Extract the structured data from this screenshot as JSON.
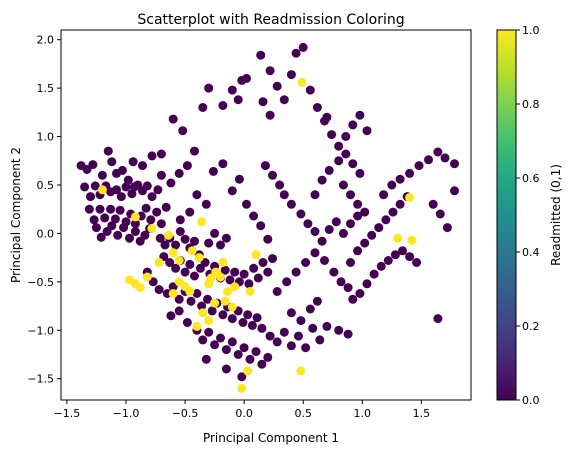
{
  "chart_data": {
    "type": "scatter",
    "title": "Scatterplot with Readmission Coloring",
    "xlabel": "Principal Component 1",
    "ylabel": "Principal Component 2",
    "xlim": [
      -1.55,
      1.92
    ],
    "ylim": [
      -1.72,
      2.1
    ],
    "xticks": [
      -1.5,
      -1.0,
      -0.5,
      0.0,
      0.5,
      1.0,
      1.5
    ],
    "xtick_labels": [
      "−1.5",
      "−1.0",
      "−0.5",
      "0.0",
      "0.5",
      "1.0",
      "1.5"
    ],
    "yticks": [
      -1.5,
      -1.0,
      -0.5,
      0.0,
      0.5,
      1.0,
      1.5,
      2.0
    ],
    "ytick_labels": [
      "−1.5",
      "−1.0",
      "−0.5",
      "0.0",
      "0.5",
      "1.0",
      "1.5",
      "2.0"
    ],
    "colorbar": {
      "label": "Readmitted (0,1)",
      "ticks": [
        0.0,
        0.2,
        0.4,
        0.6,
        0.8,
        1.0
      ],
      "tick_labels": [
        "0.0",
        "0.2",
        "0.4",
        "0.6",
        "0.8",
        "1.0"
      ],
      "colormap": "viridis"
    },
    "colors": {
      "readmitted_0": "#440154",
      "readmitted_1": "#fde725"
    },
    "series": [
      {
        "readmitted": 0,
        "points": [
          [
            -1.38,
            0.7
          ],
          [
            -1.33,
            0.66
          ],
          [
            -1.28,
            0.71
          ],
          [
            -1.2,
            0.6
          ],
          [
            -1.15,
            0.85
          ],
          [
            -1.12,
            0.74
          ],
          [
            -1.08,
            0.62
          ],
          [
            -1.03,
            0.65
          ],
          [
            -0.98,
            0.55
          ],
          [
            -0.93,
            0.48
          ],
          [
            -1.35,
            0.48
          ],
          [
            -1.3,
            0.38
          ],
          [
            -1.26,
            0.49
          ],
          [
            -1.22,
            0.4
          ],
          [
            -1.17,
            0.49
          ],
          [
            -1.13,
            0.43
          ],
          [
            -1.08,
            0.45
          ],
          [
            -1.04,
            0.38
          ],
          [
            -1.0,
            0.48
          ],
          [
            -0.95,
            0.41
          ],
          [
            -0.9,
            0.5
          ],
          [
            -0.86,
            0.44
          ],
          [
            -0.82,
            0.49
          ],
          [
            -0.78,
            0.38
          ],
          [
            -0.73,
            0.45
          ],
          [
            -1.31,
            0.25
          ],
          [
            -1.27,
            0.14
          ],
          [
            -1.22,
            0.25
          ],
          [
            -1.18,
            0.16
          ],
          [
            -1.13,
            0.25
          ],
          [
            -1.09,
            0.15
          ],
          [
            -1.05,
            0.24
          ],
          [
            -1.0,
            0.12
          ],
          [
            -0.96,
            0.2
          ],
          [
            -0.92,
            0.1
          ],
          [
            -0.87,
            0.18
          ],
          [
            -0.83,
            0.26
          ],
          [
            -0.79,
            0.14
          ],
          [
            -0.74,
            0.22
          ],
          [
            -0.7,
            0.1
          ],
          [
            -0.66,
            0.27
          ],
          [
            -1.25,
            0.06
          ],
          [
            -1.21,
            -0.04
          ],
          [
            -1.16,
            0.02
          ],
          [
            -1.12,
            0.08
          ],
          [
            -1.07,
            -0.02
          ],
          [
            -1.02,
            0.06
          ],
          [
            -0.97,
            -0.05
          ],
          [
            -0.92,
            0.02
          ],
          [
            -0.88,
            -0.08
          ],
          [
            -0.84,
            -0.02
          ],
          [
            -0.8,
            0.05
          ],
          [
            -0.71,
            -0.05
          ],
          [
            -0.67,
            -0.12
          ],
          [
            -0.63,
            -0.05
          ],
          [
            -0.58,
            -0.12
          ],
          [
            -0.54,
            0.02
          ],
          [
            -0.5,
            -0.06
          ],
          [
            -0.46,
            -0.15
          ],
          [
            -0.42,
            -0.08
          ],
          [
            -0.38,
            -0.22
          ],
          [
            -0.3,
            -0.1
          ],
          [
            -0.25,
            0.0
          ],
          [
            -0.2,
            -0.12
          ],
          [
            -0.15,
            -0.05
          ],
          [
            -0.68,
            -0.24
          ],
          [
            -0.63,
            -0.3
          ],
          [
            -0.58,
            -0.36
          ],
          [
            -0.54,
            -0.28
          ],
          [
            -0.5,
            -0.4
          ],
          [
            -0.46,
            -0.32
          ],
          [
            -0.42,
            -0.44
          ],
          [
            -0.37,
            -0.36
          ],
          [
            -0.33,
            -0.3
          ],
          [
            -0.29,
            -0.42
          ],
          [
            -0.25,
            -0.34
          ],
          [
            -0.2,
            -0.46
          ],
          [
            -0.16,
            -0.38
          ],
          [
            -0.12,
            -0.48
          ],
          [
            -0.08,
            -0.4
          ],
          [
            -0.04,
            -0.5
          ],
          [
            0.0,
            -0.42
          ],
          [
            0.04,
            -0.52
          ],
          [
            0.08,
            -0.36
          ],
          [
            0.12,
            -0.46
          ],
          [
            0.16,
            -0.3
          ],
          [
            0.2,
            -0.4
          ],
          [
            0.24,
            -0.26
          ],
          [
            -0.82,
            -0.4
          ],
          [
            -0.77,
            -0.5
          ],
          [
            -0.72,
            -0.58
          ],
          [
            -0.65,
            -0.62
          ],
          [
            -0.6,
            -0.55
          ],
          [
            -0.55,
            -0.68
          ],
          [
            -0.5,
            -0.6
          ],
          [
            -0.45,
            -0.7
          ],
          [
            -0.4,
            -0.62
          ],
          [
            -0.36,
            -0.75
          ],
          [
            -0.31,
            -0.68
          ],
          [
            -0.27,
            -0.8
          ],
          [
            -0.23,
            -0.72
          ],
          [
            -0.18,
            -0.84
          ],
          [
            -0.14,
            -0.76
          ],
          [
            -0.1,
            -0.88
          ],
          [
            -0.05,
            -0.8
          ],
          [
            -0.01,
            -0.92
          ],
          [
            0.03,
            -0.84
          ],
          [
            0.07,
            -0.95
          ],
          [
            0.11,
            -0.87
          ],
          [
            0.15,
            -0.98
          ],
          [
            -0.62,
            -0.85
          ],
          [
            -0.55,
            -0.8
          ],
          [
            -0.48,
            -0.92
          ],
          [
            -0.4,
            -1.0
          ],
          [
            -0.35,
            -1.1
          ],
          [
            -0.3,
            -1.02
          ],
          [
            -0.25,
            -1.15
          ],
          [
            -0.2,
            -1.08
          ],
          [
            -0.15,
            -1.2
          ],
          [
            -0.1,
            -1.12
          ],
          [
            -0.05,
            -1.25
          ],
          [
            0.0,
            -1.18
          ],
          [
            0.05,
            -1.3
          ],
          [
            0.1,
            -1.22
          ],
          [
            0.15,
            -1.35
          ],
          [
            0.2,
            -1.28
          ],
          [
            -0.32,
            -1.3
          ],
          [
            -0.15,
            -1.4
          ],
          [
            -0.02,
            -1.48
          ],
          [
            0.22,
            -1.06
          ],
          [
            0.28,
            -1.12
          ],
          [
            0.34,
            -1.02
          ],
          [
            0.4,
            -1.16
          ],
          [
            0.46,
            -1.06
          ],
          [
            0.52,
            -1.18
          ],
          [
            0.58,
            -0.98
          ],
          [
            0.64,
            -1.1
          ],
          [
            0.7,
            -0.96
          ],
          [
            0.8,
            -1.0
          ],
          [
            0.88,
            -1.04
          ],
          [
            0.4,
            -0.82
          ],
          [
            0.48,
            -0.9
          ],
          [
            0.56,
            -0.78
          ],
          [
            0.62,
            -0.7
          ],
          [
            0.28,
            -0.6
          ],
          [
            0.36,
            -0.5
          ],
          [
            0.44,
            -0.4
          ],
          [
            0.52,
            -0.3
          ],
          [
            0.6,
            -0.2
          ],
          [
            0.68,
            -0.28
          ],
          [
            0.76,
            -0.4
          ],
          [
            0.82,
            -0.5
          ],
          [
            0.88,
            -0.56
          ],
          [
            0.92,
            -0.68
          ],
          [
            0.98,
            -0.62
          ],
          [
            1.04,
            -0.52
          ],
          [
            1.1,
            -0.42
          ],
          [
            1.16,
            -0.34
          ],
          [
            1.22,
            -0.28
          ],
          [
            1.28,
            -0.22
          ],
          [
            1.34,
            -0.18
          ],
          [
            1.4,
            -0.24
          ],
          [
            1.46,
            -0.3
          ],
          [
            0.9,
            -0.3
          ],
          [
            0.96,
            -0.18
          ],
          [
            1.02,
            -0.1
          ],
          [
            1.08,
            -0.02
          ],
          [
            1.14,
            0.06
          ],
          [
            1.2,
            0.14
          ],
          [
            1.26,
            0.22
          ],
          [
            1.32,
            0.3
          ],
          [
            1.38,
            0.38
          ],
          [
            0.84,
            0.0
          ],
          [
            0.9,
            0.1
          ],
          [
            0.96,
            0.18
          ],
          [
            0.78,
            0.12
          ],
          [
            0.72,
            0.04
          ],
          [
            0.66,
            -0.08
          ],
          [
            0.6,
            0.02
          ],
          [
            0.54,
            0.1
          ],
          [
            0.48,
            0.2
          ],
          [
            0.4,
            0.3
          ],
          [
            0.34,
            0.4
          ],
          [
            0.3,
            0.5
          ],
          [
            0.24,
            0.6
          ],
          [
            0.18,
            0.7
          ],
          [
            0.6,
            0.4
          ],
          [
            0.66,
            0.55
          ],
          [
            0.72,
            0.65
          ],
          [
            0.8,
            0.75
          ],
          [
            0.86,
            0.82
          ],
          [
            0.92,
            0.72
          ],
          [
            0.98,
            0.62
          ],
          [
            0.84,
            0.5
          ],
          [
            0.9,
            0.4
          ],
          [
            0.96,
            0.3
          ],
          [
            1.02,
            0.22
          ],
          [
            1.18,
            0.4
          ],
          [
            1.25,
            0.5
          ],
          [
            1.32,
            0.56
          ],
          [
            1.4,
            0.62
          ],
          [
            1.48,
            0.7
          ],
          [
            1.56,
            0.76
          ],
          [
            1.64,
            0.84
          ],
          [
            1.7,
            0.78
          ],
          [
            1.78,
            0.72
          ],
          [
            1.6,
            0.3
          ],
          [
            1.66,
            0.2
          ],
          [
            1.72,
            0.06
          ],
          [
            1.78,
            0.44
          ],
          [
            1.64,
            -0.88
          ],
          [
            0.16,
            1.36
          ],
          [
            0.22,
            1.22
          ],
          [
            0.28,
            1.52
          ],
          [
            0.34,
            1.38
          ],
          [
            0.4,
            1.64
          ],
          [
            0.44,
            1.86
          ],
          [
            0.5,
            1.92
          ],
          [
            0.56,
            1.48
          ],
          [
            0.62,
            1.3
          ],
          [
            0.68,
            1.16
          ],
          [
            0.74,
            1.02
          ],
          [
            0.8,
            0.9
          ],
          [
            0.86,
            1.0
          ],
          [
            0.92,
            1.12
          ],
          [
            0.98,
            1.22
          ],
          [
            1.04,
            1.06
          ],
          [
            0.14,
            1.84
          ],
          [
            0.22,
            1.68
          ],
          [
            -0.02,
            1.58
          ],
          [
            0.02,
            1.6
          ],
          [
            -0.18,
            1.32
          ],
          [
            -0.1,
            1.48
          ],
          [
            -0.05,
            1.38
          ],
          [
            -0.3,
            1.5
          ],
          [
            -0.35,
            1.3
          ],
          [
            -0.42,
            0.85
          ],
          [
            -0.48,
            0.7
          ],
          [
            -0.55,
            0.62
          ],
          [
            -0.62,
            0.52
          ],
          [
            -0.7,
            0.6
          ],
          [
            -0.78,
            0.8
          ],
          [
            -0.86,
            0.7
          ],
          [
            -0.94,
            0.74
          ],
          [
            -0.6,
            1.18
          ],
          [
            -0.52,
            1.06
          ],
          [
            -0.26,
            0.64
          ],
          [
            -0.18,
            0.72
          ],
          [
            -0.1,
            0.44
          ],
          [
            -0.04,
            0.56
          ],
          [
            0.02,
            0.3
          ],
          [
            0.08,
            0.18
          ],
          [
            0.14,
            0.08
          ],
          [
            0.2,
            -0.06
          ],
          [
            -0.32,
            0.3
          ],
          [
            -0.4,
            0.4
          ],
          [
            -0.46,
            0.22
          ],
          [
            -0.54,
            0.14
          ],
          [
            -0.7,
            0.82
          ],
          [
            0.7,
            1.2
          ]
        ]
      },
      {
        "readmitted": 1,
        "points": [
          [
            -1.2,
            0.45
          ],
          [
            -0.92,
            0.17
          ],
          [
            -0.78,
            0.05
          ],
          [
            -0.64,
            -0.02
          ],
          [
            -0.36,
            0.12
          ],
          [
            -0.44,
            -0.18
          ],
          [
            -0.38,
            -0.25
          ],
          [
            -0.55,
            -0.5
          ],
          [
            -0.92,
            -0.52
          ],
          [
            -0.97,
            -0.48
          ],
          [
            -0.88,
            -0.56
          ],
          [
            -0.82,
            -0.45
          ],
          [
            -0.6,
            -0.62
          ],
          [
            -0.5,
            -0.55
          ],
          [
            -0.3,
            -0.52
          ],
          [
            -0.2,
            -0.45
          ],
          [
            -0.14,
            -0.6
          ],
          [
            -0.25,
            -0.72
          ],
          [
            -0.08,
            -0.55
          ],
          [
            0.05,
            -0.6
          ],
          [
            -0.35,
            -0.82
          ],
          [
            -0.3,
            -0.9
          ],
          [
            -0.4,
            -0.96
          ],
          [
            -0.16,
            -0.7
          ],
          [
            -0.1,
            -0.76
          ],
          [
            -0.55,
            -0.28
          ],
          [
            -0.6,
            -0.2
          ],
          [
            -0.72,
            -0.3
          ],
          [
            0.1,
            -0.22
          ],
          [
            -0.02,
            -1.6
          ],
          [
            0.03,
            -1.42
          ],
          [
            0.49,
            1.56
          ],
          [
            1.4,
            0.37
          ],
          [
            1.42,
            -0.07
          ],
          [
            1.3,
            -0.05
          ],
          [
            0.48,
            -1.42
          ],
          [
            -0.18,
            -0.3
          ],
          [
            -0.24,
            -0.4
          ],
          [
            -0.28,
            -0.46
          ],
          [
            -0.46,
            -0.6
          ]
        ]
      }
    ]
  }
}
